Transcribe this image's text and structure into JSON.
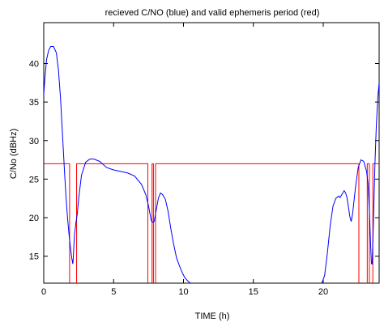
{
  "chart_data": {
    "type": "line",
    "title": "recieved C/NO (blue) and valid ephemeris period (red)",
    "xlabel": "TIME (h)",
    "ylabel": "C/No (dBHz)",
    "xlim": [
      0,
      24
    ],
    "ylim": [
      11.5,
      45.3
    ],
    "xticks": [
      0,
      5,
      10,
      15,
      20
    ],
    "yticks": [
      15,
      20,
      25,
      30,
      35,
      40
    ],
    "grid": false,
    "legend": "none",
    "colors": {
      "series1": "#0000ff",
      "series2": "#ff0000"
    },
    "series": [
      {
        "x": [
          0,
          0.1,
          0.2,
          0.35,
          0.5,
          0.7,
          0.9,
          1.05,
          1.2,
          1.35,
          1.5,
          1.6,
          1.7,
          1.8,
          1.9,
          2.0,
          2.08,
          2.12,
          2.16,
          2.2,
          2.25,
          2.3,
          2.4,
          2.5,
          2.7,
          3.0,
          3.3,
          3.6,
          4.0,
          4.5,
          5.0,
          5.5,
          6.0,
          6.5,
          7.0,
          7.3,
          7.5,
          7.6,
          7.7,
          7.8,
          7.9,
          8.0,
          8.2,
          8.35,
          8.5,
          8.7,
          8.9,
          9.1,
          9.3,
          9.5,
          9.7,
          9.9,
          10.1,
          10.3,
          10.5,
          10.7,
          10.9,
          11.3,
          12,
          13,
          14,
          15,
          16,
          17,
          18,
          19,
          19.7,
          19.9,
          20.1,
          20.3,
          20.5,
          20.7,
          20.9,
          21.1,
          21.2,
          21.3,
          21.4,
          21.5,
          21.6,
          21.7,
          21.8,
          21.9,
          22.0,
          22.1,
          22.3,
          22.5,
          22.7,
          22.9,
          23.1,
          23.2,
          23.3,
          23.4,
          23.45,
          23.5,
          23.6,
          23.7,
          23.8,
          23.9,
          24.0
        ],
        "y": [
          36,
          38.5,
          40.5,
          41.7,
          42.2,
          42.2,
          41.4,
          39.2,
          35.5,
          30.5,
          25.5,
          22.5,
          20,
          18,
          16.3,
          14.8,
          14.0,
          15.0,
          16.5,
          17.8,
          18.5,
          19.3,
          20.5,
          22.5,
          25.5,
          27.2,
          27.6,
          27.6,
          27.3,
          26.5,
          26.2,
          26.0,
          25.8,
          25.4,
          24.3,
          23.0,
          21.5,
          20.5,
          19.6,
          19.4,
          19.5,
          20.5,
          22.5,
          23.2,
          23.0,
          22.4,
          20.8,
          18.5,
          16.5,
          14.8,
          13.8,
          12.9,
          12.2,
          11.8,
          11.5,
          11.4,
          11.3,
          11.3,
          11.3,
          11.3,
          11.3,
          11.3,
          11.3,
          11.3,
          11.3,
          11.3,
          11.3,
          11.5,
          12.5,
          15.5,
          19.0,
          21.5,
          22.5,
          22.8,
          22.6,
          22.9,
          23.2,
          23.5,
          23.2,
          22.6,
          21.4,
          20.2,
          19.5,
          20.5,
          23.8,
          26.5,
          27.5,
          27.3,
          26.0,
          24.5,
          21.0,
          16.0,
          14.0,
          14.0,
          20.0,
          27.0,
          32.0,
          35.5,
          37.5
        ]
      },
      {
        "x": [
          0,
          1.85,
          1.85,
          2.35,
          2.35,
          7.45,
          7.45,
          7.75,
          7.75,
          7.85,
          7.85,
          8.0,
          8.0,
          22.55,
          22.55,
          23.15,
          23.15,
          23.3,
          23.3,
          23.55,
          23.55,
          24.0
        ],
        "y": [
          27,
          27,
          11.3,
          11.3,
          27,
          27,
          11.3,
          11.3,
          27,
          27,
          11.3,
          11.3,
          27,
          27,
          11.3,
          11.3,
          27,
          27,
          11.3,
          11.3,
          27,
          27
        ]
      }
    ]
  }
}
